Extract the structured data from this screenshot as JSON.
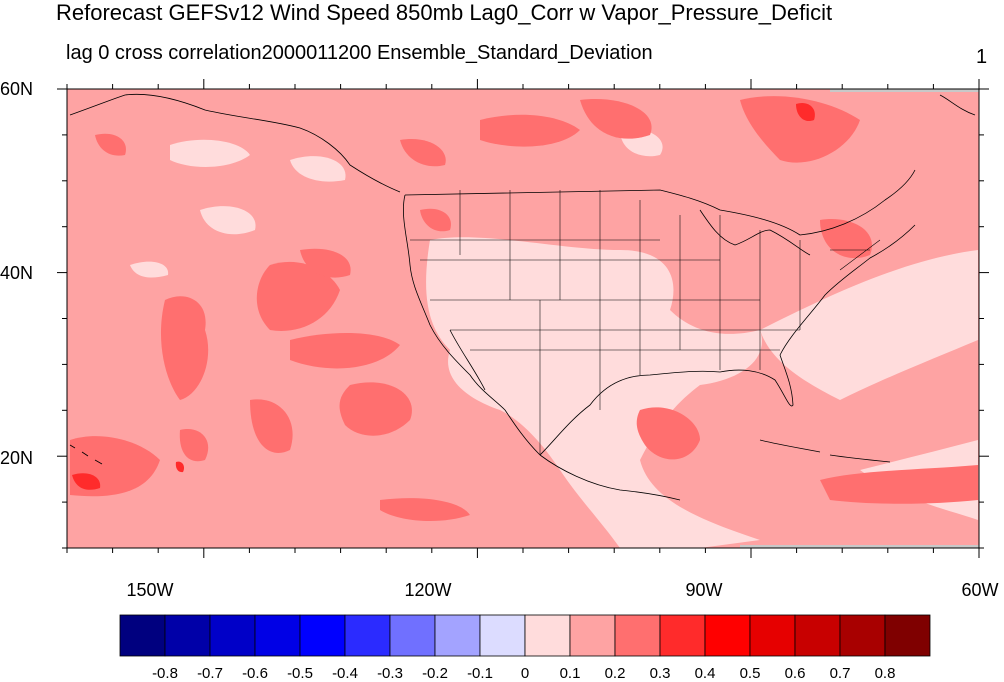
{
  "title": "Reforecast GEFSv12 Wind Speed 850mb Lag0_Corr w Vapor_Pressure_Deficit",
  "subtitle": "lag 0 cross correlation2000011200 Ensemble_Standard_Deviation",
  "right_label": "1",
  "map": {
    "lat_range": [
      10,
      60
    ],
    "lon_range": [
      -160,
      -60
    ],
    "lat_labels": [
      "60N",
      "40N",
      "20N"
    ],
    "lon_labels": [
      "150W",
      "120W",
      "90W",
      "60W"
    ],
    "background_color": "#fea3a3",
    "features": [
      "coastlines",
      "us-state-boundaries",
      "national-borders"
    ]
  },
  "colorbar": {
    "labels": [
      "-0.8",
      "-0.7",
      "-0.6",
      "-0.5",
      "-0.4",
      "-0.3",
      "-0.2",
      "-0.1",
      "0",
      "0.1",
      "0.2",
      "0.3",
      "0.4",
      "0.5",
      "0.6",
      "0.7",
      "0.8"
    ],
    "colors": [
      "#00007f",
      "#0000a8",
      "#0000c8",
      "#0000e6",
      "#0000ff",
      "#2b2bff",
      "#7070ff",
      "#a3a3ff",
      "#dcdcff",
      "#ffdcdc",
      "#fea3a3",
      "#ff6f6f",
      "#ff2b2b",
      "#ff0000",
      "#e60000",
      "#c80000",
      "#a80000",
      "#7f0000"
    ]
  }
}
